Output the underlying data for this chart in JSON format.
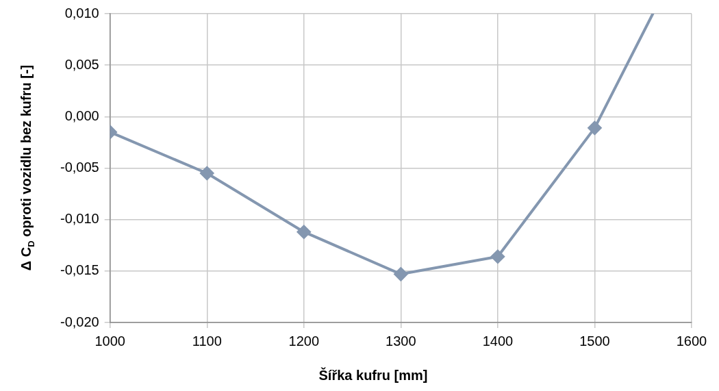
{
  "chart_data": {
    "type": "line",
    "xlabel": "Šířka kufru [mm]",
    "ylabel": "Δ C$_{D}$ oproti vozidlu bez kufru [-]",
    "series": [
      {
        "color": "#8497b0",
        "x": [
          1000,
          1100,
          1200,
          1300,
          1400,
          1500
        ],
        "values": [
          -0.0015,
          -0.0055,
          -0.0112,
          -0.0153,
          -0.0136,
          -0.0011
        ],
        "marker": "diamond"
      },
      {
        "color": "#8497b0",
        "x": [
          1500,
          1560
        ],
        "values": [
          -0.0011,
          0.01
        ],
        "marker": "none"
      }
    ],
    "xlim": [
      1000,
      1600
    ],
    "xticks": [
      1000,
      1100,
      1200,
      1300,
      1400,
      1500,
      1600
    ],
    "ylim": [
      -0.02,
      0.01
    ],
    "yticks": [
      {
        "value": -0.02,
        "label": "-0,020"
      },
      {
        "value": -0.015,
        "label": "-0,015"
      },
      {
        "value": -0.01,
        "label": "-0,010"
      },
      {
        "value": -0.005,
        "label": "-0,005"
      },
      {
        "value": 0,
        "label": "0,000"
      },
      {
        "value": 0.005,
        "label": "0,005"
      },
      {
        "value": 0.01,
        "label": "0,010"
      }
    ],
    "grid": true,
    "legend": false,
    "line_style": "solid"
  }
}
